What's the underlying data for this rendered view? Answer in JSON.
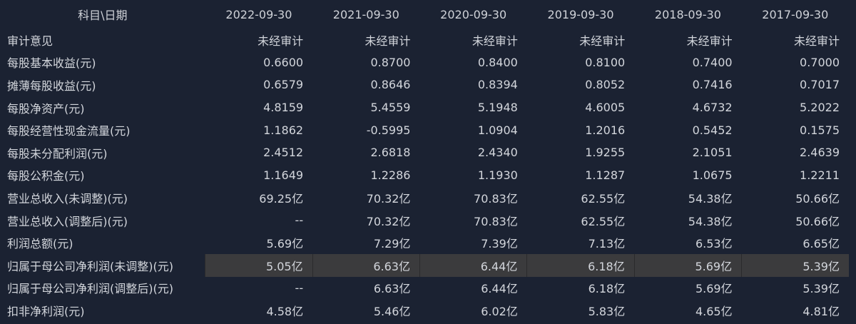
{
  "header": {
    "label": "科目\\日期",
    "dates": [
      "2022-09-30",
      "2021-09-30",
      "2020-09-30",
      "2019-09-30",
      "2018-09-30",
      "2017-09-30"
    ]
  },
  "highlight_color": "#3b3b3d",
  "rows": [
    {
      "label": "审计意见",
      "values": [
        "未经审计",
        "未经审计",
        "未经审计",
        "未经审计",
        "未经审计",
        "未经审计"
      ]
    },
    {
      "label": "每股基本收益(元)",
      "values": [
        "0.6600",
        "0.8700",
        "0.8400",
        "0.8100",
        "0.7400",
        "0.7000"
      ]
    },
    {
      "label": "摊薄每股收益(元)",
      "values": [
        "0.6579",
        "0.8646",
        "0.8394",
        "0.8052",
        "0.7416",
        "0.7017"
      ]
    },
    {
      "label": "每股净资产(元)",
      "values": [
        "4.8159",
        "5.4559",
        "5.1948",
        "4.6005",
        "4.6732",
        "5.2022"
      ]
    },
    {
      "label": "每股经营性现金流量(元)",
      "values": [
        "1.1862",
        "-0.5995",
        "1.0904",
        "1.2016",
        "0.5452",
        "0.1575"
      ]
    },
    {
      "label": "每股未分配利润(元)",
      "values": [
        "2.4512",
        "2.6818",
        "2.4340",
        "1.9255",
        "2.1051",
        "2.4639"
      ]
    },
    {
      "label": "每股公积金(元)",
      "values": [
        "1.1649",
        "1.2286",
        "1.1930",
        "1.1287",
        "1.0675",
        "1.2211"
      ]
    },
    {
      "label": "营业总收入(未调整)(元)",
      "values": [
        "69.25亿",
        "70.32亿",
        "70.83亿",
        "62.55亿",
        "54.38亿",
        "50.66亿"
      ]
    },
    {
      "label": "营业总收入(调整后)(元)",
      "values": [
        "--",
        "70.32亿",
        "70.83亿",
        "62.55亿",
        "54.38亿",
        "50.66亿"
      ]
    },
    {
      "label": "利润总额(元)",
      "values": [
        "5.69亿",
        "7.29亿",
        "7.39亿",
        "7.13亿",
        "6.53亿",
        "6.65亿"
      ]
    },
    {
      "label": "归属于母公司净利润(未调整)(元)",
      "values": [
        "5.05亿",
        "6.63亿",
        "6.44亿",
        "6.18亿",
        "5.69亿",
        "5.39亿"
      ],
      "highlighted": true
    },
    {
      "label": "归属于母公司净利润(调整后)(元)",
      "values": [
        "--",
        "6.63亿",
        "6.44亿",
        "6.18亿",
        "5.69亿",
        "5.39亿"
      ]
    },
    {
      "label": "扣非净利润(元)",
      "values": [
        "4.58亿",
        "5.46亿",
        "6.02亿",
        "5.83亿",
        "4.65亿",
        "4.81亿"
      ]
    }
  ]
}
